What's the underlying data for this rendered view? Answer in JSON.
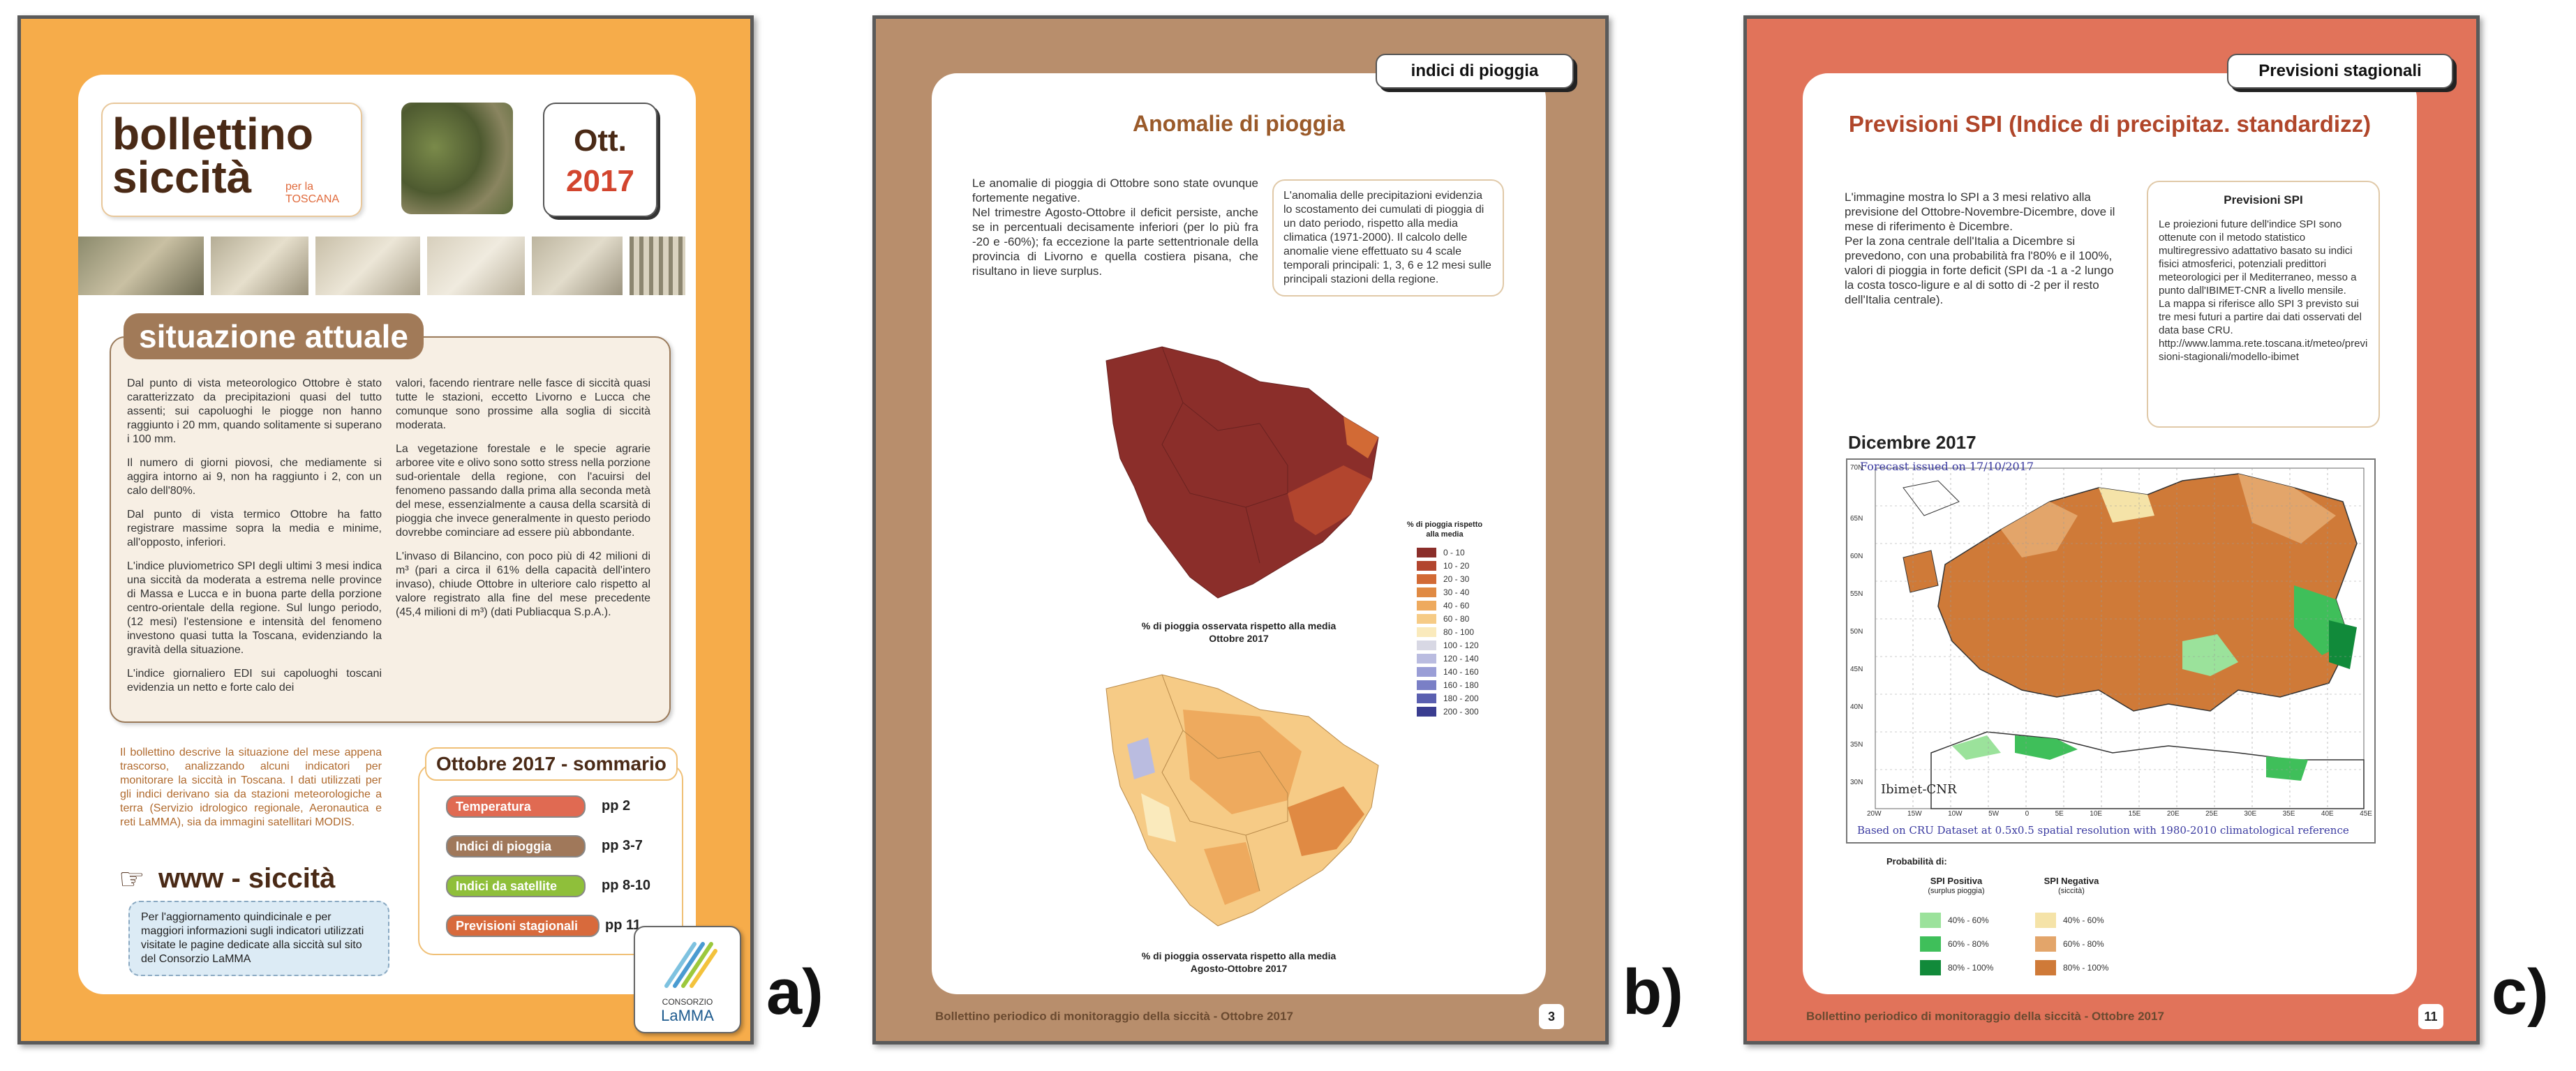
{
  "panel_a": {
    "label": "a)",
    "title_line1": "bollettino",
    "title_line2": "siccità",
    "per_la": "per la",
    "toscana": "TOSCANA",
    "month": "Ott.",
    "year": "2017",
    "section_title": "situazione attuale",
    "col1": [
      "Dal punto di vista meteorologico Ottobre è stato caratterizzato da precipitazioni quasi del tutto assenti; sui capoluoghi le piogge non hanno raggiunto i 20 mm, quando solitamente si superano i 100 mm.",
      "Il numero di giorni piovosi, che mediamente si aggira intorno ai 9, non ha raggiunto i 2, con un calo dell'80%.",
      "Dal punto di vista termico Ottobre ha fatto registrare massime sopra la media e minime, all'opposto, inferiori.",
      "L'indice pluviometrico SPI degli ultimi 3 mesi indica una siccità da moderata a estrema nelle province di Massa e Lucca e in buona parte della porzione centro-orientale della regione. Sul lungo periodo, (12 mesi) l'estensione e intensità del fenomeno investono quasi tutta la Toscana, evidenziando la gravità della situazione.",
      "L'indice giornaliero EDI sui capoluoghi toscani evidenzia un netto e forte calo dei"
    ],
    "col2": [
      "valori, facendo rientrare nelle fasce di siccità quasi tutte le stazioni, eccetto Livorno e Lucca che comunque sono prossime alla soglia di siccità moderata.",
      "La vegetazione forestale e le specie agrarie arboree vite e olivo sono sotto stress nella porzione sud-orientale della regione, con l'acuirsi del fenomeno passando dalla prima alla seconda metà del mese, essenzialmente a causa della scarsità di pioggia che invece generalmente in questo periodo dovrebbe cominciare ad essere più abbondante.",
      "L'invaso di Bilancino, con poco più di 42 milioni di m³ (pari a circa il 61% della capacità dell'intero invaso), chiude Ottobre in ulteriore calo rispetto al valore registrato alla fine del mese precedente (45,4 milioni di m³) (dati Publiacqua S.p.A.)."
    ],
    "intro": "Il bollettino descrive la situazione del mese appena trascorso, analizzando alcuni indicatori per monitorare la siccità in Toscana. I dati utilizzati per gli indici derivano sia da stazioni meteorologiche a terra (Servizio idrologico regionale, Aeronautica e reti LaMMA), sia da immagini satellitari MODIS.",
    "www_title": "www - siccità",
    "www_box": "Per l'aggiornamento quindicinale e per maggiori informazioni sugli indicatori utilizzati visitate le pagine dedicate alla siccità sul sito del Consorzio LaMMA",
    "summary_title": "Ottobre 2017 - sommario",
    "summary": [
      {
        "label": "Temperatura",
        "pages": "pp 2",
        "color": "#e06a52"
      },
      {
        "label": "Indici di pioggia",
        "pages": "pp 3-7",
        "color": "#a0785a"
      },
      {
        "label": "Indici da satellite",
        "pages": "pp 8-10",
        "color": "#8fbf3a"
      },
      {
        "label": "Previsioni stagionali",
        "pages": "pp 11",
        "color": "#d86a3c"
      }
    ],
    "logo_line1": "CONSORZIO",
    "logo_line2": "LaMMA"
  },
  "panel_b": {
    "label": "b)",
    "tag": "indici di pioggia",
    "title": "Anomalie di pioggia",
    "text": [
      "Le anomalie di pioggia di Ottobre sono state ovunque fortemente negative.",
      "Nel trimestre Agosto-Ottobre il deficit persiste, anche se in percentuali decisamente inferiori (per lo più fra -20 e -60%); fa eccezione la parte settentrionale della provincia di Livorno e quella costiera pisana, che risultano in lieve surplus."
    ],
    "box": "L'anomalia delle precipitazioni evidenzia lo scostamento dei cumulati di pioggia di un dato periodo, rispetto alla media climatica (1971-2000). Il calcolo delle anomalie viene effettuato su 4 scale temporali principali: 1, 3, 6 e 12 mesi sulle principali stazioni della regione.",
    "legend_title": "% di pioggia rispetto alla media",
    "legend": [
      {
        "label": "0 - 10",
        "color": "#8b2e2a"
      },
      {
        "label": "10 - 20",
        "color": "#b2452e"
      },
      {
        "label": "20 - 30",
        "color": "#d26a35"
      },
      {
        "label": "30 - 40",
        "color": "#e08a43"
      },
      {
        "label": "40 - 60",
        "color": "#eeaa5e"
      },
      {
        "label": "60 - 80",
        "color": "#f6cb86"
      },
      {
        "label": "80 - 100",
        "color": "#faeabc"
      },
      {
        "label": "100 - 120",
        "color": "#d8d8e4"
      },
      {
        "label": "120 - 140",
        "color": "#babce0"
      },
      {
        "label": "140 - 160",
        "color": "#9a9ed6"
      },
      {
        "label": "160 - 180",
        "color": "#7a7fc6"
      },
      {
        "label": "180 - 200",
        "color": "#5a5fb0"
      },
      {
        "label": "200 - 300",
        "color": "#3a3d90"
      }
    ],
    "map1_caption_line1": "% di pioggia osservata  rispetto alla media",
    "map1_caption_line2": "Ottobre 2017",
    "map2_caption_line1": "% di pioggia osservata rispetto alla media",
    "map2_caption_line2": "Agosto-Ottobre 2017",
    "footer": "Bollettino periodico di monitoraggio della siccità - Ottobre 2017",
    "page": "3"
  },
  "panel_c": {
    "label": "c)",
    "tag": "Previsioni stagionali",
    "title": "Previsioni SPI (Indice di precipitaz. standardizz)",
    "text": [
      "L'immagine mostra lo SPI a 3 mesi relativo alla previsione del Ottobre-Novembre-Dicembre, dove il mese di riferimento è Dicembre.",
      "Per la zona centrale dell'Italia a Dicembre si prevedono, con una probabilità fra l'80% e il 100%, valori di pioggia in forte deficit (SPI da -1 a -2 lungo la costa tosco-ligure e al di sotto di -2 per il resto dell'Italia centrale)."
    ],
    "box_title": "Previsioni SPI",
    "box": [
      "Le proiezioni future dell'indice SPI sono ottenute con il metodo statistico multiregressivo adattativo basato su indici fisici atmosferici, potenziali predittori meteorologici per il Mediterraneo, messo a punto dall'IBIMET-CNR a livello mensile.",
      "La mappa si riferisce allo SPI 3 previsto sui tre mesi futuri a partire dai dati osservati del data base CRU.",
      "http://www.lamma.rete.toscana.it/meteo/previsioni-stagionali/modello-ibimet"
    ],
    "map_title": "Dicembre 2017",
    "forecast_issued": "Forecast issued on 17/10/2017",
    "ibimet": "Ibimet-CNR",
    "cru_note": "Based on CRU Dataset at 0.5x0.5 spatial resolution with 1980-2010 climatological reference",
    "lat_ticks": [
      "70N",
      "65N",
      "60N",
      "55N",
      "50N",
      "45N",
      "40N",
      "35N",
      "30N"
    ],
    "lon_ticks": [
      "20W",
      "15W",
      "10W",
      "5W",
      "0",
      "5E",
      "10E",
      "15E",
      "20E",
      "25E",
      "30E",
      "35E",
      "40E",
      "45E"
    ],
    "prob_title": "Probabilità di:",
    "pos_title": "SPI Positiva",
    "pos_sub": "(surplus pioggia)",
    "neg_title": "SPI Negativa",
    "neg_sub": "(siccità)",
    "pos_legend": [
      {
        "label": "40% - 60%",
        "color": "#9be29b"
      },
      {
        "label": "60% - 80%",
        "color": "#3fbf5a"
      },
      {
        "label": "80% - 100%",
        "color": "#118a3a"
      }
    ],
    "neg_legend": [
      {
        "label": "40% - 60%",
        "color": "#f5e3a8"
      },
      {
        "label": "60% - 80%",
        "color": "#e3a56a"
      },
      {
        "label": "80% - 100%",
        "color": "#cf7a38"
      }
    ],
    "footer": "Bollettino periodico di monitoraggio della siccità - Ottobre 2017",
    "page": "11"
  }
}
